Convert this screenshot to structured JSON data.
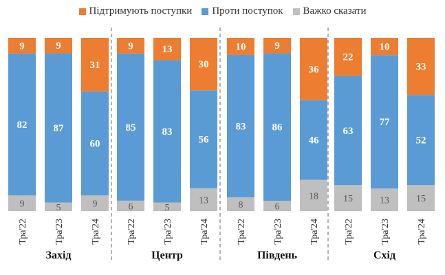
{
  "chart_data": {
    "type": "bar",
    "stacked": true,
    "orientation": "vertical",
    "ylim": [
      0,
      100
    ],
    "grid": false,
    "legend_position": "top",
    "colors": {
      "support": "#ED7D31",
      "against": "#5B9BD5",
      "undecided": "#BFBFBF"
    },
    "series": [
      {
        "key": "support",
        "name": "Підтримують поступки"
      },
      {
        "key": "against",
        "name": "Проти поступок"
      },
      {
        "key": "undecided",
        "name": "Важко сказати"
      }
    ],
    "groups": [
      {
        "region": "Захід",
        "bars": [
          {
            "category": "Тра'22",
            "support": 9,
            "against": 82,
            "undecided": 9
          },
          {
            "category": "Тра'23",
            "support": 9,
            "against": 87,
            "undecided": 5
          },
          {
            "category": "Тра'24",
            "support": 31,
            "against": 60,
            "undecided": 9
          }
        ]
      },
      {
        "region": "Центр",
        "bars": [
          {
            "category": "Тра'22",
            "support": 9,
            "against": 85,
            "undecided": 6
          },
          {
            "category": "Тра'23",
            "support": 13,
            "against": 83,
            "undecided": 5
          },
          {
            "category": "Тра'24",
            "support": 30,
            "against": 56,
            "undecided": 13
          }
        ]
      },
      {
        "region": "Південь",
        "bars": [
          {
            "category": "Тра'22",
            "support": 10,
            "against": 83,
            "undecided": 8
          },
          {
            "category": "Тра'23",
            "support": 9,
            "against": 86,
            "undecided": 6
          },
          {
            "category": "Тра'24",
            "support": 36,
            "against": 46,
            "undecided": 18
          }
        ]
      },
      {
        "region": "Схід",
        "bars": [
          {
            "category": "Тра'22",
            "support": 22,
            "against": 63,
            "undecided": 15
          },
          {
            "category": "Тра'23",
            "support": 10,
            "against": 77,
            "undecided": 13
          },
          {
            "category": "Тра'24",
            "support": 33,
            "against": 52,
            "undecided": 15
          }
        ]
      }
    ]
  }
}
